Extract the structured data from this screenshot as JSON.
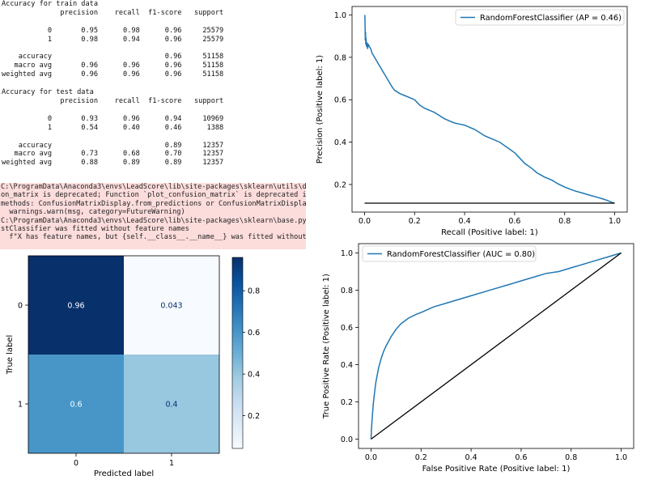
{
  "report": {
    "lines": [
      "Accuracy for train data",
      "              precision    recall  f1-score   support",
      "",
      "           0       0.95      0.98      0.96     25579",
      "           1       0.98      0.94      0.96     25579",
      "",
      "    accuracy                           0.96     51158",
      "   macro avg       0.96      0.96      0.96     51158",
      "weighted avg       0.96      0.96      0.96     51158",
      "",
      "Accuracy for test data",
      "              precision    recall  f1-score   support",
      "",
      "           0       0.93      0.96      0.94     10969",
      "           1       0.54      0.40      0.46      1388",
      "",
      "    accuracy                           0.89     12357",
      "   macro avg       0.73      0.68      0.70     12357",
      "weighted avg       0.88      0.89      0.89     12357"
    ]
  },
  "warnings": {
    "lines": [
      "C:\\ProgramData\\Anaconda3\\envs\\LeadScore\\lib\\site-packages\\sklearn\\utils\\depr",
      "on_matrix is deprecated; Function `plot_confusion_matrix` is deprecated in 1",
      "methods: ConfusionMatrixDisplay.from_predictions or ConfusionMatrixDisplay.f",
      "  warnings.warn(msg, category=FutureWarning)",
      "C:\\ProgramData\\Anaconda3\\envs\\LeadScore\\lib\\site-packages\\sklearn\\base.py:44",
      "stClassifier was fitted without feature names",
      "  f\"X has feature names, but {self.__class__.__name__} was fitted without\""
    ]
  },
  "colors": {
    "curve": "#1f77b4",
    "baseline": "#000000",
    "warning_bg": "#fddcdc",
    "cm_dark": "#08306b",
    "cm_light": "#f7fbff"
  },
  "chart_data": [
    {
      "type": "heatmap",
      "xlabel": "Predicted label",
      "ylabel": "True label",
      "x_categories": [
        "0",
        "1"
      ],
      "y_categories": [
        "0",
        "1"
      ],
      "values": [
        [
          0.96,
          0.043
        ],
        [
          0.6,
          0.4
        ]
      ],
      "cell_labels": [
        [
          "0.96",
          "0.043"
        ],
        [
          "0.6",
          "0.4"
        ]
      ],
      "colormap": "Blues",
      "colorbar": {
        "min": 0.043,
        "max": 0.96,
        "ticks": [
          0.2,
          0.4,
          0.6,
          0.8
        ]
      },
      "grid": false
    },
    {
      "type": "line",
      "legend": [
        "RandomForestClassifier (AP = 0.46)"
      ],
      "legend_position": "top-right",
      "xlabel": "Recall (Positive label: 1)",
      "ylabel": "Precision (Positive label: 1)",
      "xlim": [
        -0.05,
        1.05
      ],
      "ylim": [
        0.07,
        1.04
      ],
      "xticks": [
        0.0,
        0.2,
        0.4,
        0.6,
        0.8,
        1.0
      ],
      "yticks": [
        0.2,
        0.4,
        0.6,
        0.8,
        1.0
      ],
      "grid": false,
      "series": [
        {
          "name": "RandomForestClassifier (AP = 0.46)",
          "x": [
            1.0,
            0.99,
            0.97,
            0.95,
            0.93,
            0.9,
            0.87,
            0.84,
            0.8,
            0.77,
            0.75,
            0.72,
            0.69,
            0.67,
            0.64,
            0.62,
            0.6,
            0.57,
            0.54,
            0.51,
            0.48,
            0.46,
            0.44,
            0.42,
            0.4,
            0.38,
            0.36,
            0.34,
            0.32,
            0.3,
            0.28,
            0.26,
            0.24,
            0.22,
            0.2,
            0.18,
            0.16,
            0.14,
            0.12,
            0.11,
            0.1,
            0.09,
            0.08,
            0.07,
            0.06,
            0.05,
            0.04,
            0.03,
            0.025,
            0.02,
            0.015,
            0.012,
            0.01,
            0.008,
            0.006,
            0.005,
            0.004,
            0.003,
            0.002,
            0.001
          ],
          "y": [
            0.112,
            0.115,
            0.125,
            0.133,
            0.14,
            0.15,
            0.16,
            0.17,
            0.188,
            0.205,
            0.22,
            0.235,
            0.255,
            0.275,
            0.3,
            0.325,
            0.35,
            0.375,
            0.4,
            0.415,
            0.43,
            0.445,
            0.46,
            0.47,
            0.48,
            0.485,
            0.49,
            0.5,
            0.51,
            0.525,
            0.54,
            0.55,
            0.56,
            0.575,
            0.6,
            0.61,
            0.62,
            0.63,
            0.645,
            0.66,
            0.68,
            0.7,
            0.72,
            0.74,
            0.76,
            0.78,
            0.8,
            0.82,
            0.84,
            0.85,
            0.86,
            0.84,
            0.87,
            0.85,
            0.89,
            0.86,
            0.92,
            0.88,
            0.95,
            1.0
          ]
        },
        {
          "name": "",
          "x": [
            0.0,
            1.0
          ],
          "y": [
            0.112,
            0.112
          ]
        }
      ]
    },
    {
      "type": "line",
      "legend": [
        "RandomForestClassifier (AUC = 0.80)"
      ],
      "legend_position": "top-left",
      "xlabel": "False Positive Rate (Positive label: 1)",
      "ylabel": "True Positive Rate (Positive label: 1)",
      "xlim": [
        -0.05,
        1.05
      ],
      "ylim": [
        -0.05,
        1.05
      ],
      "xticks": [
        0.0,
        0.2,
        0.4,
        0.6,
        0.8,
        1.0
      ],
      "yticks": [
        0.0,
        0.2,
        0.4,
        0.6,
        0.8,
        1.0
      ],
      "grid": false,
      "series": [
        {
          "name": "RandomForestClassifier (AUC = 0.80)",
          "x": [
            0.0,
            0.002,
            0.005,
            0.01,
            0.015,
            0.02,
            0.03,
            0.04,
            0.05,
            0.06,
            0.08,
            0.1,
            0.12,
            0.15,
            0.18,
            0.2,
            0.25,
            0.3,
            0.35,
            0.4,
            0.45,
            0.5,
            0.55,
            0.6,
            0.65,
            0.7,
            0.75,
            0.8,
            0.85,
            0.9,
            0.95,
            1.0
          ],
          "y": [
            0.0,
            0.06,
            0.12,
            0.2,
            0.26,
            0.31,
            0.38,
            0.43,
            0.47,
            0.5,
            0.55,
            0.59,
            0.62,
            0.65,
            0.67,
            0.68,
            0.71,
            0.73,
            0.75,
            0.77,
            0.79,
            0.81,
            0.83,
            0.85,
            0.87,
            0.89,
            0.9,
            0.92,
            0.94,
            0.96,
            0.98,
            1.0
          ]
        },
        {
          "name": "",
          "x": [
            0.0,
            1.0
          ],
          "y": [
            0.0,
            1.0
          ]
        }
      ]
    }
  ]
}
